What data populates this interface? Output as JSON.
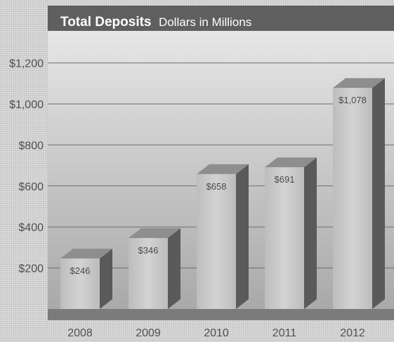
{
  "chart_data": {
    "type": "bar",
    "title": "Total Deposits",
    "subtitle": "Dollars in Millions",
    "categories": [
      "2008",
      "2009",
      "2010",
      "2011",
      "2012"
    ],
    "values": [
      246,
      346,
      658,
      691,
      1078
    ],
    "value_labels": [
      "$246",
      "$346",
      "$658",
      "$691",
      "$1,078"
    ],
    "y_ticks": [
      200,
      400,
      600,
      800,
      1000,
      1200
    ],
    "y_tick_labels": [
      "$200",
      "$400",
      "$600",
      "$800",
      "$1,000",
      "$1,200"
    ],
    "ylim": [
      0,
      1350
    ],
    "grid": true,
    "colors": {
      "bar_front": "#c7c7c7",
      "bar_side": "#5a5a5a",
      "bar_top": "#8e8e8e",
      "header": "#5f5f5f",
      "plot_top": "#e6e6e6",
      "plot_bottom": "#a9a9a9",
      "grid": "#6e6e6e",
      "floor": "#7b7b7b",
      "text": "#505050"
    }
  }
}
